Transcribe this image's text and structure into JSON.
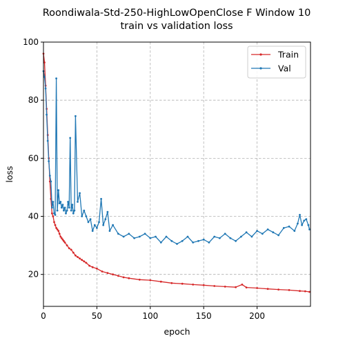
{
  "chart_data": {
    "type": "line",
    "title": "Roondiwala-Std-250-HighLowOpenClose F Window 10",
    "subtitle": "train vs validation loss",
    "xlabel": "epoch",
    "ylabel": "loss",
    "xlim": [
      0,
      250
    ],
    "ylim": [
      9,
      100
    ],
    "xticks": [
      0,
      50,
      100,
      150,
      200
    ],
    "yticks": [
      20,
      40,
      60,
      80,
      100
    ],
    "grid": true,
    "legend_position": "top-right",
    "series": [
      {
        "name": "Train",
        "color": "#d62728",
        "x": [
          0,
          1,
          2,
          3,
          4,
          5,
          6,
          7,
          8,
          9,
          10,
          11,
          12,
          13,
          14,
          15,
          16,
          17,
          18,
          19,
          20,
          22,
          24,
          26,
          28,
          30,
          32,
          34,
          36,
          38,
          40,
          43,
          46,
          50,
          55,
          60,
          65,
          70,
          75,
          80,
          90,
          100,
          110,
          120,
          130,
          140,
          150,
          160,
          170,
          180,
          186,
          190,
          200,
          210,
          220,
          230,
          240,
          245,
          249
        ],
        "values": [
          96,
          93,
          85,
          77,
          68,
          60,
          52,
          46,
          41,
          40,
          38,
          37,
          36,
          35.5,
          35,
          34,
          33,
          32.5,
          32,
          31.5,
          31,
          30,
          29,
          28.5,
          27.5,
          26.5,
          26,
          25.5,
          25,
          24.5,
          24,
          23,
          22.5,
          22,
          21,
          20.5,
          20,
          19.5,
          19,
          18.7,
          18.2,
          18,
          17.5,
          17,
          16.8,
          16.5,
          16.3,
          16,
          15.8,
          15.6,
          16.5,
          15.5,
          15.3,
          15,
          14.8,
          14.6,
          14.3,
          14.2,
          14
        ]
      },
      {
        "name": "Val",
        "color": "#1f77b4",
        "x": [
          0,
          1,
          2,
          3,
          4,
          5,
          6,
          7,
          8,
          9,
          10,
          11,
          12,
          13,
          14,
          15,
          16,
          17,
          18,
          19,
          20,
          21,
          22,
          23,
          24,
          25,
          26,
          27,
          28,
          29,
          30,
          32,
          34,
          36,
          38,
          40,
          42,
          44,
          46,
          48,
          50,
          52,
          54,
          56,
          58,
          60,
          62,
          65,
          70,
          75,
          80,
          85,
          90,
          95,
          100,
          105,
          110,
          115,
          120,
          125,
          130,
          135,
          140,
          145,
          150,
          155,
          160,
          165,
          170,
          175,
          180,
          185,
          190,
          195,
          200,
          205,
          210,
          215,
          220,
          225,
          230,
          235,
          238,
          240,
          242,
          244,
          246,
          248,
          249
        ],
        "values": [
          90,
          88,
          84,
          75,
          66,
          59,
          54,
          52,
          43,
          45,
          41,
          40.5,
          87.5,
          42,
          49,
          44.5,
          45,
          43,
          44,
          42,
          43,
          41,
          42,
          45,
          43,
          67,
          42,
          44,
          41,
          42,
          74.5,
          45,
          48,
          40,
          42,
          40,
          38,
          39,
          35,
          37,
          36,
          38,
          46,
          37,
          39,
          41.5,
          35,
          37,
          34,
          33,
          34,
          32.5,
          33,
          34,
          32.5,
          33,
          31,
          33,
          31.5,
          30.5,
          31.5,
          33,
          31,
          31.5,
          32,
          31,
          33,
          32.5,
          34,
          32.5,
          31.5,
          33,
          34.5,
          33,
          35,
          34,
          35.5,
          34.5,
          33.5,
          36,
          36.5,
          35,
          37.5,
          40.5,
          37,
          38.5,
          39,
          37,
          35.5
        ]
      }
    ]
  }
}
